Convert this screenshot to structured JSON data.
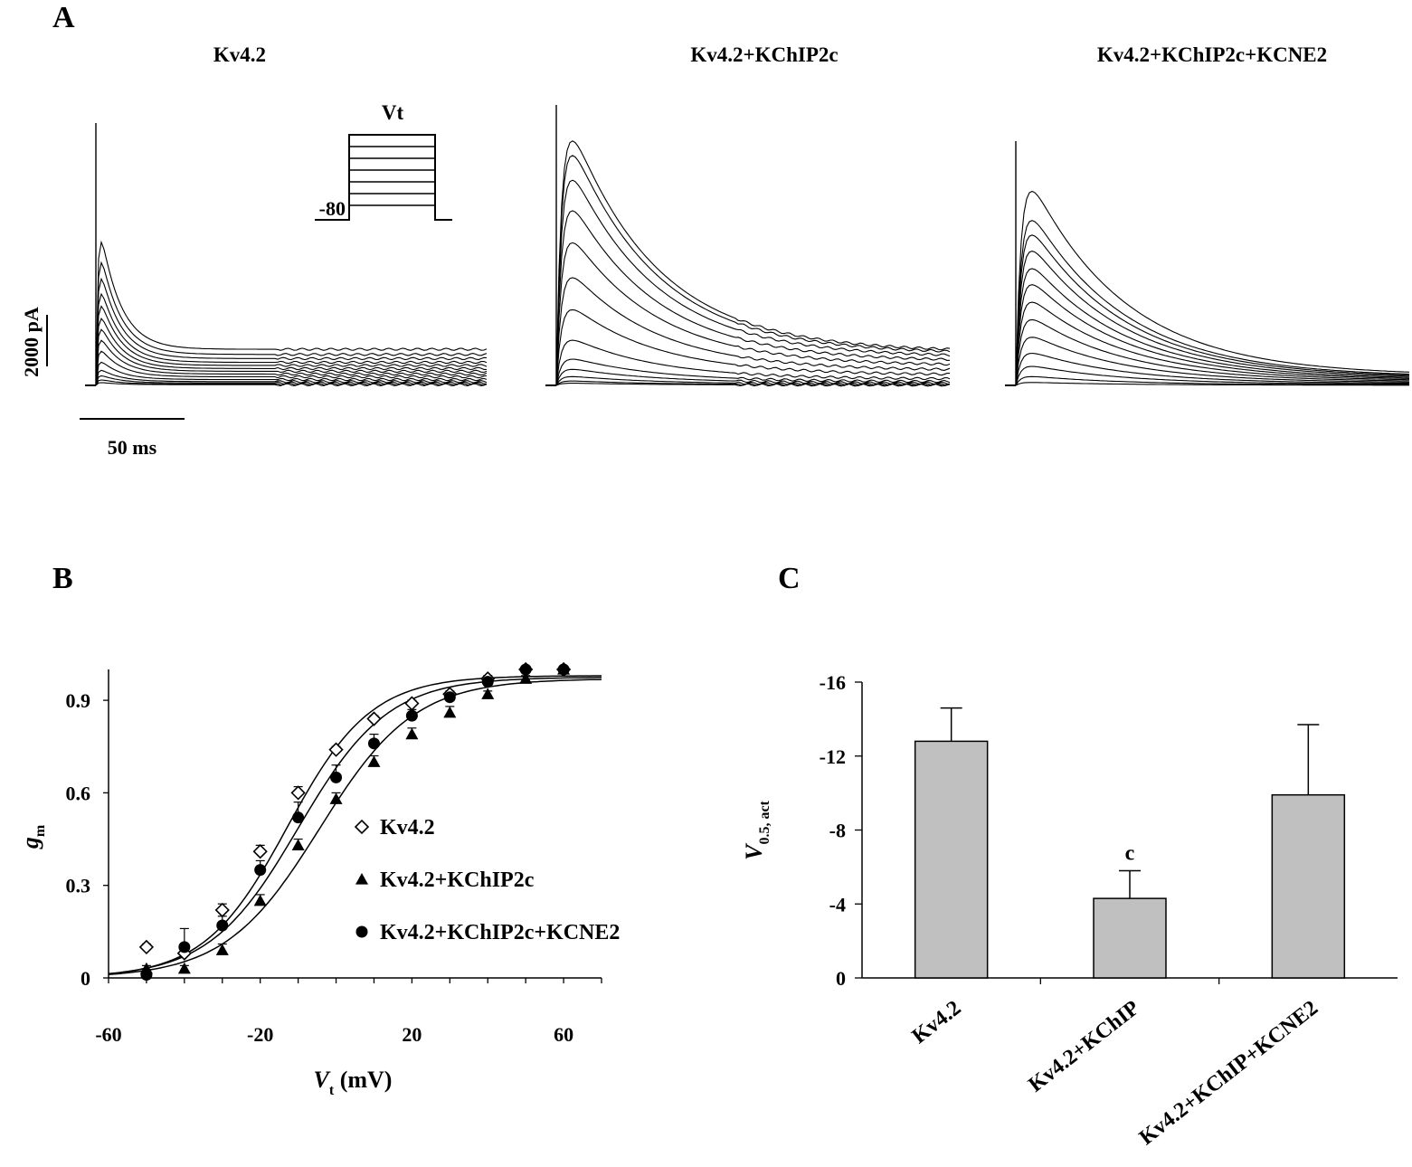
{
  "panel_a": {
    "letter": "A",
    "titles": [
      "Kv4.2",
      "Kv4.2+KChIP2c",
      "Kv4.2+KChIP2c+KCNE2"
    ],
    "protocol": {
      "label": "Vt",
      "holding_label": "-80"
    },
    "scale_bars": {
      "current": "2000 pA",
      "time": "50 ms"
    }
  },
  "panel_b": {
    "letter": "B"
  },
  "panel_c": {
    "letter": "C"
  },
  "chart_data": [
    {
      "type": "scatter",
      "panel": "B",
      "xlabel_main": "V",
      "xlabel_sub": "t",
      "xlabel_unit": " (mV)",
      "ylabel_main": "g",
      "ylabel_sub": "m",
      "xlim": [
        -60,
        70
      ],
      "ylim": [
        0,
        1.0
      ],
      "xticks": [
        -60,
        -20,
        20,
        60
      ],
      "yticks": [
        0,
        0.3,
        0.6,
        0.9
      ],
      "ytick_labels": [
        "0",
        "0.3",
        "0.6",
        "0.9"
      ],
      "grid": false,
      "legend_position": "center-right",
      "series": [
        {
          "name": "Kv4.2",
          "marker": "diamond-open",
          "x": [
            -50,
            -40,
            -30,
            -20,
            -10,
            0,
            10,
            20,
            30,
            40,
            50,
            60
          ],
          "y": [
            0.1,
            0.08,
            0.22,
            0.41,
            0.6,
            0.74,
            0.84,
            0.89,
            0.92,
            0.97,
            1.0,
            1.0
          ],
          "err": [
            0.01,
            0.02,
            0.02,
            0.02,
            0.02,
            0.01,
            0.01,
            0.01,
            0.01,
            0.01,
            0.0,
            0.0
          ],
          "fit": {
            "vhalf": -12.8,
            "k": 11.0,
            "max": 0.98
          }
        },
        {
          "name": "Kv4.2+KChIP2c",
          "marker": "triangle-filled",
          "x": [
            -50,
            -40,
            -30,
            -20,
            -10,
            0,
            10,
            20,
            30,
            40,
            50,
            60
          ],
          "y": [
            0.03,
            0.03,
            0.09,
            0.25,
            0.43,
            0.58,
            0.7,
            0.79,
            0.86,
            0.92,
            0.97,
            1.0
          ],
          "err": [
            0.01,
            0.01,
            0.02,
            0.02,
            0.02,
            0.02,
            0.02,
            0.02,
            0.02,
            0.01,
            0.01,
            0.0
          ],
          "fit": {
            "vhalf": -4.3,
            "k": 12.5,
            "max": 0.97
          }
        },
        {
          "name": "Kv4.2+KChIP2c+KCNE2",
          "marker": "circle-filled",
          "x": [
            -50,
            -40,
            -30,
            -20,
            -10,
            0,
            10,
            20,
            30,
            40,
            50,
            60
          ],
          "y": [
            0.01,
            0.1,
            0.17,
            0.35,
            0.52,
            0.65,
            0.76,
            0.85,
            0.91,
            0.96,
            1.0,
            1.0
          ],
          "err": [
            0.01,
            0.06,
            0.03,
            0.03,
            0.05,
            0.04,
            0.03,
            0.02,
            0.01,
            0.01,
            0.0,
            0.0
          ],
          "fit": {
            "vhalf": -9.9,
            "k": 11.8,
            "max": 0.975
          }
        }
      ]
    },
    {
      "type": "bar",
      "panel": "C",
      "ylabel_main": "V",
      "ylabel_sub": "0.5, act",
      "categories": [
        "Kv4.2",
        "Kv4.2+KChIP",
        "Kv4.2+KChIP+KCNE2"
      ],
      "values": [
        -12.8,
        -4.3,
        -9.9
      ],
      "errors": [
        1.8,
        1.5,
        3.8
      ],
      "annotations": [
        "",
        "c",
        ""
      ],
      "ylim": [
        0,
        -16
      ],
      "yticks": [
        0,
        -4,
        -8,
        -12,
        -16
      ],
      "ytick_labels": [
        "0",
        "-4",
        "-8",
        "-12",
        "-16"
      ],
      "bar_color": "#c0c0c0",
      "grid": false
    }
  ]
}
